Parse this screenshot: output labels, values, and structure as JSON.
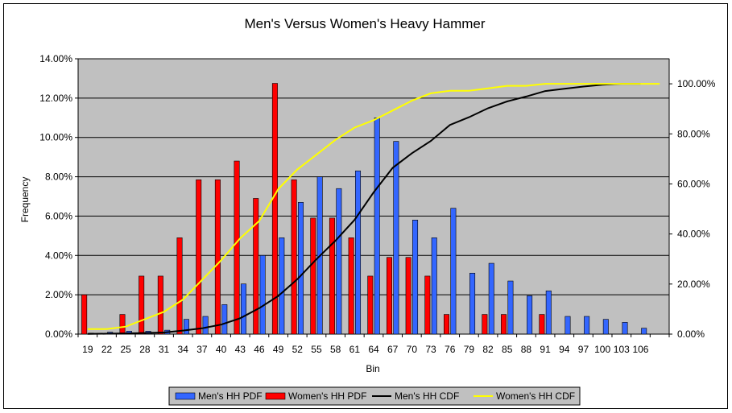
{
  "chart_data": {
    "type": "bar",
    "title": "Men's Versus Women's Heavy Hammer",
    "xlabel": "Bin",
    "ylabel": "Frequency",
    "ylabel_right": "",
    "categories": [
      "19",
      "22",
      "25",
      "28",
      "31",
      "34",
      "37",
      "40",
      "43",
      "46",
      "49",
      "52",
      "55",
      "58",
      "61",
      "64",
      "67",
      "70",
      "73",
      "76",
      "79",
      "82",
      "85",
      "88",
      "91",
      "94",
      "97",
      "100",
      "103",
      "106",
      ""
    ],
    "y_ticks": [
      "0.00%",
      "2.00%",
      "4.00%",
      "6.00%",
      "8.00%",
      "10.00%",
      "12.00%",
      "14.00%"
    ],
    "y2_ticks": [
      "0.00%",
      "20.00%",
      "40.00%",
      "60.00%",
      "80.00%",
      "100.00%"
    ],
    "ylim": [
      0,
      14
    ],
    "y2lim": [
      0,
      110
    ],
    "grid": "horizontal",
    "legend_position": "bottom",
    "series": [
      {
        "name": "Men's HH PDF",
        "kind": "bar",
        "axis": "left",
        "color": "#3366ff",
        "values": [
          0.05,
          0.1,
          0.15,
          0.15,
          0.2,
          0.75,
          0.9,
          1.5,
          2.55,
          4.0,
          4.9,
          6.7,
          8.0,
          7.4,
          8.3,
          11.0,
          9.8,
          5.8,
          4.9,
          6.4,
          3.1,
          3.6,
          2.7,
          1.95,
          2.2,
          0.9,
          0.9,
          0.75,
          0.6,
          0.3,
          0
        ]
      },
      {
        "name": "Women's HH PDF",
        "kind": "bar",
        "axis": "left",
        "color": "#ff0000",
        "values": [
          2.0,
          0,
          1.0,
          2.95,
          2.95,
          4.9,
          7.85,
          7.85,
          8.8,
          6.9,
          12.75,
          7.85,
          5.9,
          5.9,
          4.9,
          2.95,
          3.9,
          3.9,
          2.95,
          1.0,
          0,
          1.0,
          1.0,
          0,
          1.0,
          0,
          0,
          0,
          0,
          0,
          0
        ]
      },
      {
        "name": "Men's HH CDF",
        "kind": "line",
        "axis": "right",
        "color": "#000000",
        "values": [
          0.05,
          0.15,
          0.3,
          0.45,
          0.65,
          1.4,
          2.3,
          3.8,
          6.35,
          10.35,
          15.25,
          21.95,
          29.95,
          37.35,
          45.65,
          56.65,
          66.45,
          72.25,
          77.15,
          83.55,
          86.65,
          90.25,
          92.95,
          94.9,
          97.1,
          98.0,
          98.9,
          99.65,
          100.0,
          100.0,
          null
        ]
      },
      {
        "name": "Women's HH CDF",
        "kind": "line",
        "axis": "right",
        "color": "#ffff00",
        "values": [
          2.0,
          2.0,
          3.0,
          5.95,
          8.9,
          13.8,
          21.65,
          29.5,
          38.3,
          45.2,
          57.95,
          65.8,
          71.7,
          77.6,
          82.5,
          85.45,
          89.35,
          93.25,
          96.2,
          97.2,
          97.2,
          98.2,
          99.2,
          99.2,
          100.0,
          100.0,
          100.0,
          100.0,
          100.0,
          100.0,
          100.0
        ]
      }
    ]
  }
}
